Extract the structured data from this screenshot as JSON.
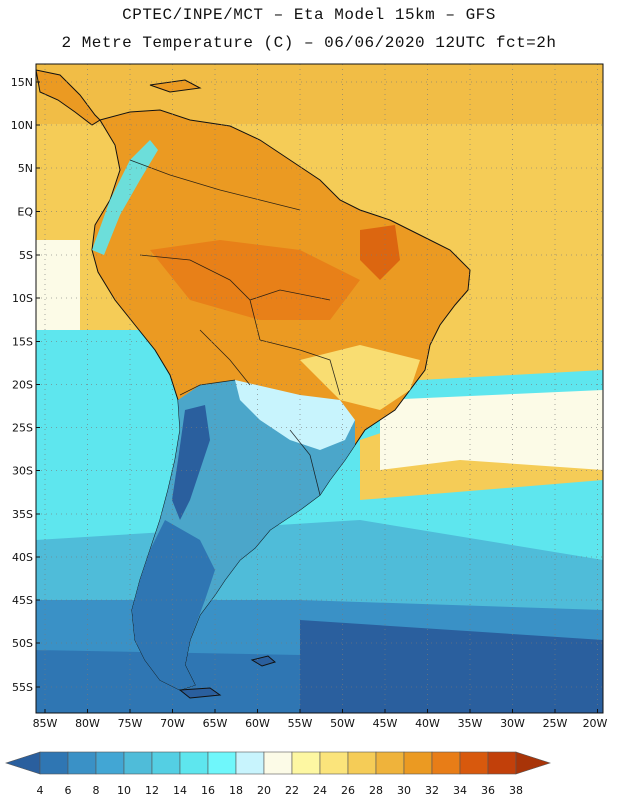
{
  "title_line1": "CPTEC/INPE/MCT –  Eta Model 15km – GFS",
  "title_line2": "2 Metre Temperature (C) – 06/06/2020 12UTC fct=2h",
  "lat_labels": [
    "15N",
    "10N",
    "5N",
    "EQ",
    "5S",
    "10S",
    "15S",
    "20S",
    "25S",
    "30S",
    "35S",
    "40S",
    "45S",
    "50S",
    "55S"
  ],
  "lon_labels": [
    "85W",
    "80W",
    "75W",
    "70W",
    "65W",
    "60W",
    "55W",
    "50W",
    "45W",
    "40W",
    "35W",
    "30W",
    "25W",
    "20W"
  ],
  "legend": {
    "values": [
      "4",
      "6",
      "8",
      "10",
      "12",
      "14",
      "16",
      "18",
      "20",
      "22",
      "24",
      "26",
      "28",
      "30",
      "32",
      "34",
      "36",
      "38"
    ],
    "colors": [
      "#2a5f9e",
      "#2f76b3",
      "#3a91c6",
      "#42a6d4",
      "#4fbcd9",
      "#54cfe3",
      "#5ee6ee",
      "#6ff7fb",
      "#c8f4fd",
      "#fcfbe7",
      "#fdf7a2",
      "#fbe47b",
      "#f5cc57",
      "#efb33b",
      "#eb9a22",
      "#e87d17",
      "#d8590d",
      "#c2400a",
      "#a83408"
    ]
  },
  "map_colors": {
    "ocean_cold": "#2a5f9e",
    "ocean_cool": "#3a91c6",
    "ocean_mid": "#4fbcd9",
    "ocean_cyan": "#5ee6ee",
    "ocean_light": "#c8f4fd",
    "warm_sea": "#f5cc57",
    "land_hot": "#eb9a22",
    "land_warm": "#efb33b",
    "coast_line": "#111111"
  }
}
